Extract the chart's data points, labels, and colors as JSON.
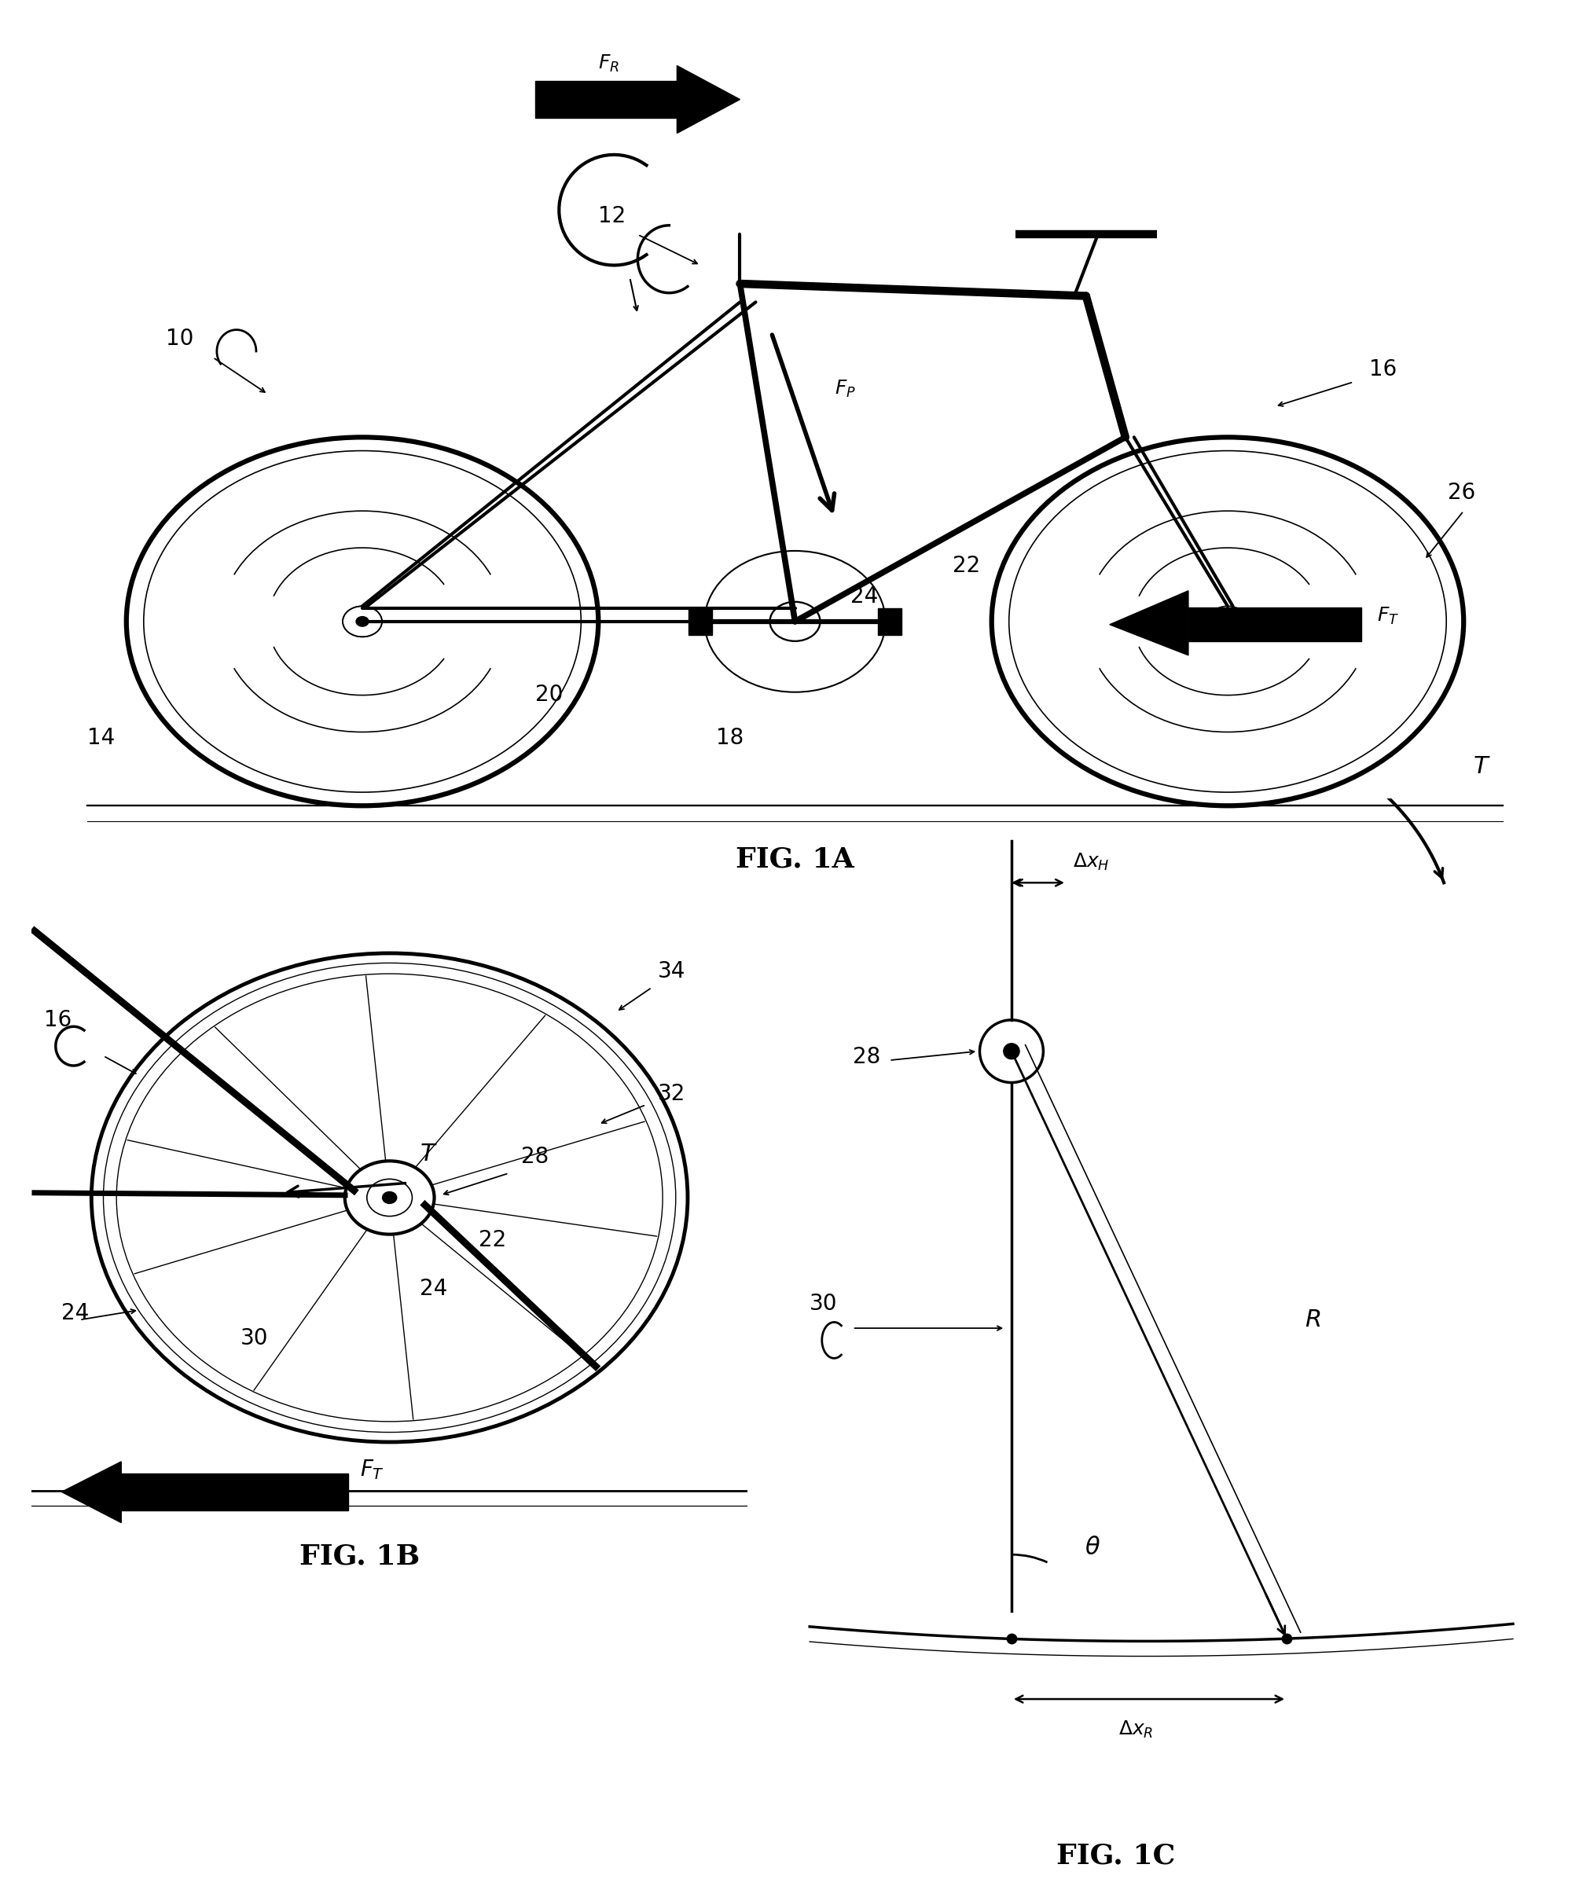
{
  "bg_color": "#ffffff",
  "line_color": "#000000",
  "fig_width": 20.23,
  "fig_height": 24.19,
  "fig1a_label": "FIG. 1A",
  "fig1b_label": "FIG. 1B",
  "fig1c_label": "FIG. 1C"
}
